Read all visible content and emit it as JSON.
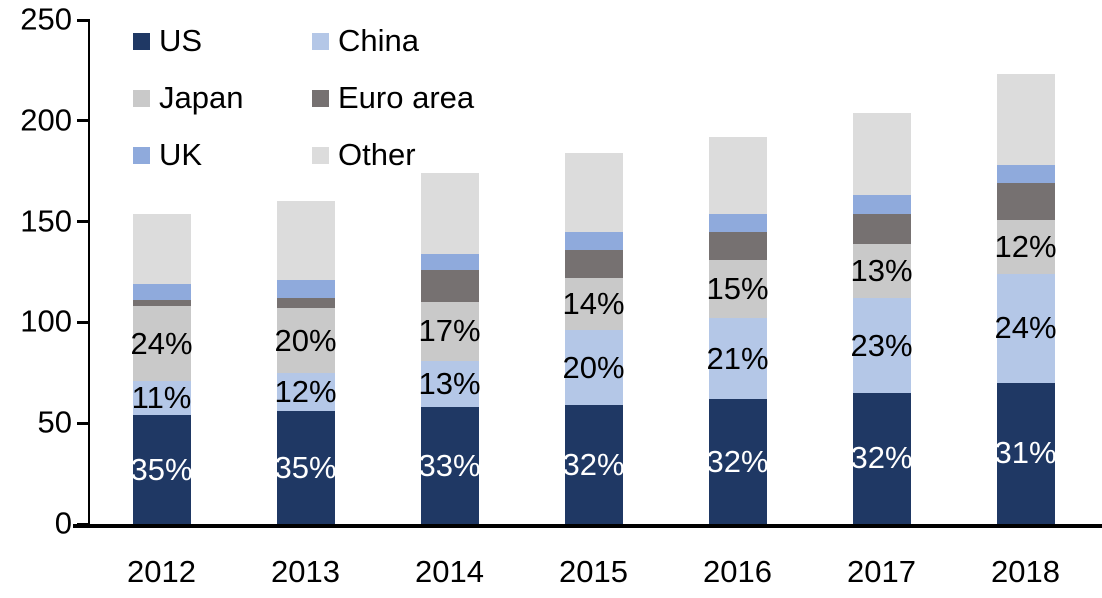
{
  "chart_data": {
    "type": "bar",
    "stacked": true,
    "title": "",
    "xlabel": "",
    "ylabel": "",
    "categories": [
      "2012",
      "2013",
      "2014",
      "2015",
      "2016",
      "2017",
      "2018"
    ],
    "series": [
      {
        "name": "US",
        "color": "#1F3864",
        "values": [
          54,
          56,
          58,
          59,
          62,
          65,
          70
        ],
        "labels": [
          "35%",
          "35%",
          "33%",
          "32%",
          "32%",
          "32%",
          "31%"
        ],
        "label_color": "#ffffff"
      },
      {
        "name": "China",
        "color": "#B4C7E7",
        "values": [
          17,
          19,
          23,
          37,
          40,
          47,
          54
        ],
        "labels": [
          "11%",
          "12%",
          "13%",
          "20%",
          "21%",
          "23%",
          "24%"
        ],
        "label_color": "#000000"
      },
      {
        "name": "Japan",
        "color": "#C9C9C9",
        "values": [
          37,
          32,
          29,
          26,
          29,
          27,
          27
        ],
        "labels": [
          "24%",
          "20%",
          "17%",
          "14%",
          "15%",
          "13%",
          "12%"
        ],
        "label_color": "#000000"
      },
      {
        "name": "Euro area",
        "color": "#767171",
        "values": [
          3,
          5,
          16,
          14,
          14,
          15,
          18
        ],
        "labels": null,
        "label_color": "#000000"
      },
      {
        "name": "UK",
        "color": "#8FAADC",
        "values": [
          8,
          9,
          8,
          9,
          9,
          9,
          9
        ],
        "labels": null,
        "label_color": "#000000"
      },
      {
        "name": "Other",
        "color": "#DCDCDC",
        "values": [
          35,
          39,
          40,
          39,
          38,
          41,
          45
        ],
        "labels": null,
        "label_color": "#000000"
      }
    ],
    "totals": [
      154,
      160,
      174,
      184,
      192,
      204,
      223
    ],
    "ylim": [
      0,
      250
    ],
    "yticks": [
      "0",
      "50",
      "100",
      "150",
      "200",
      "250"
    ],
    "grid": false,
    "legend": {
      "position": "top-left",
      "columns": 2,
      "items": [
        "US",
        "China",
        "Japan",
        "Euro area",
        "UK",
        "Other"
      ]
    },
    "axis_color": "#000000",
    "background": "#ffffff"
  }
}
